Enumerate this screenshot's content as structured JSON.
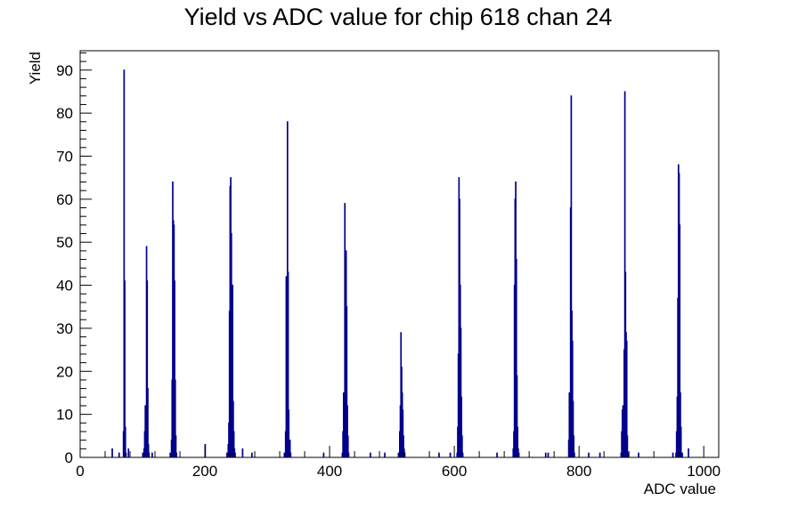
{
  "chart_data": {
    "type": "bar",
    "title": "Yield vs ADC value for chip 618 chan 24",
    "xlabel": "ADC value",
    "ylabel": "Yield",
    "xlim": [
      0,
      1024
    ],
    "ylim": [
      0,
      94.5
    ],
    "xticks": [
      0,
      200,
      400,
      600,
      800,
      1000
    ],
    "yticks": [
      0,
      10,
      20,
      30,
      40,
      50,
      60,
      70,
      80,
      90
    ],
    "grid": false,
    "legend": "none",
    "line_color": "#00008b",
    "bin_width": 1,
    "bins": [
      {
        "x": 51,
        "y": 2
      },
      {
        "x": 62,
        "y": 1
      },
      {
        "x": 69,
        "y": 6
      },
      {
        "x": 70,
        "y": 90
      },
      {
        "x": 71,
        "y": 41
      },
      {
        "x": 72,
        "y": 7
      },
      {
        "x": 73,
        "y": 1
      },
      {
        "x": 77,
        "y": 2
      },
      {
        "x": 100,
        "y": 1
      },
      {
        "x": 102,
        "y": 2
      },
      {
        "x": 103,
        "y": 6
      },
      {
        "x": 104,
        "y": 12
      },
      {
        "x": 105,
        "y": 10
      },
      {
        "x": 106,
        "y": 49
      },
      {
        "x": 107,
        "y": 41
      },
      {
        "x": 108,
        "y": 16
      },
      {
        "x": 109,
        "y": 3
      },
      {
        "x": 110,
        "y": 1
      },
      {
        "x": 115,
        "y": 1
      },
      {
        "x": 144,
        "y": 1
      },
      {
        "x": 146,
        "y": 4
      },
      {
        "x": 147,
        "y": 18
      },
      {
        "x": 148,
        "y": 64
      },
      {
        "x": 149,
        "y": 55
      },
      {
        "x": 150,
        "y": 54
      },
      {
        "x": 151,
        "y": 41
      },
      {
        "x": 152,
        "y": 18
      },
      {
        "x": 153,
        "y": 5
      },
      {
        "x": 154,
        "y": 1
      },
      {
        "x": 200,
        "y": 3
      },
      {
        "x": 235,
        "y": 1
      },
      {
        "x": 237,
        "y": 3
      },
      {
        "x": 238,
        "y": 8
      },
      {
        "x": 239,
        "y": 34
      },
      {
        "x": 240,
        "y": 63
      },
      {
        "x": 241,
        "y": 65
      },
      {
        "x": 242,
        "y": 52
      },
      {
        "x": 243,
        "y": 25
      },
      {
        "x": 244,
        "y": 40
      },
      {
        "x": 245,
        "y": 13
      },
      {
        "x": 246,
        "y": 6
      },
      {
        "x": 247,
        "y": 2
      },
      {
        "x": 248,
        "y": 1
      },
      {
        "x": 260,
        "y": 2
      },
      {
        "x": 275,
        "y": 1
      },
      {
        "x": 327,
        "y": 1
      },
      {
        "x": 329,
        "y": 6
      },
      {
        "x": 330,
        "y": 42
      },
      {
        "x": 331,
        "y": 36
      },
      {
        "x": 332,
        "y": 78
      },
      {
        "x": 333,
        "y": 43
      },
      {
        "x": 334,
        "y": 11
      },
      {
        "x": 335,
        "y": 2
      },
      {
        "x": 336,
        "y": 4
      },
      {
        "x": 337,
        "y": 1
      },
      {
        "x": 390,
        "y": 1
      },
      {
        "x": 420,
        "y": 1
      },
      {
        "x": 421,
        "y": 6
      },
      {
        "x": 422,
        "y": 15
      },
      {
        "x": 423,
        "y": 10
      },
      {
        "x": 424,
        "y": 59
      },
      {
        "x": 425,
        "y": 24
      },
      {
        "x": 426,
        "y": 48
      },
      {
        "x": 427,
        "y": 35
      },
      {
        "x": 428,
        "y": 12
      },
      {
        "x": 429,
        "y": 5
      },
      {
        "x": 430,
        "y": 1
      },
      {
        "x": 465,
        "y": 1
      },
      {
        "x": 488,
        "y": 1
      },
      {
        "x": 510,
        "y": 1
      },
      {
        "x": 512,
        "y": 6
      },
      {
        "x": 513,
        "y": 12
      },
      {
        "x": 514,
        "y": 29
      },
      {
        "x": 515,
        "y": 21
      },
      {
        "x": 516,
        "y": 15
      },
      {
        "x": 517,
        "y": 11
      },
      {
        "x": 518,
        "y": 5
      },
      {
        "x": 519,
        "y": 2
      },
      {
        "x": 520,
        "y": 1
      },
      {
        "x": 575,
        "y": 1
      },
      {
        "x": 593,
        "y": 1
      },
      {
        "x": 604,
        "y": 1
      },
      {
        "x": 605,
        "y": 7
      },
      {
        "x": 606,
        "y": 24
      },
      {
        "x": 607,
        "y": 65
      },
      {
        "x": 608,
        "y": 60
      },
      {
        "x": 609,
        "y": 40
      },
      {
        "x": 610,
        "y": 30
      },
      {
        "x": 611,
        "y": 14
      },
      {
        "x": 612,
        "y": 5
      },
      {
        "x": 613,
        "y": 1
      },
      {
        "x": 668,
        "y": 1
      },
      {
        "x": 694,
        "y": 2
      },
      {
        "x": 695,
        "y": 6
      },
      {
        "x": 696,
        "y": 40
      },
      {
        "x": 697,
        "y": 60
      },
      {
        "x": 698,
        "y": 64
      },
      {
        "x": 699,
        "y": 46
      },
      {
        "x": 700,
        "y": 19
      },
      {
        "x": 701,
        "y": 7
      },
      {
        "x": 702,
        "y": 2
      },
      {
        "x": 703,
        "y": 1
      },
      {
        "x": 746,
        "y": 1
      },
      {
        "x": 750,
        "y": 1
      },
      {
        "x": 783,
        "y": 4
      },
      {
        "x": 784,
        "y": 15
      },
      {
        "x": 785,
        "y": 11
      },
      {
        "x": 786,
        "y": 58
      },
      {
        "x": 787,
        "y": 84
      },
      {
        "x": 788,
        "y": 34
      },
      {
        "x": 789,
        "y": 27
      },
      {
        "x": 790,
        "y": 13
      },
      {
        "x": 791,
        "y": 5
      },
      {
        "x": 792,
        "y": 1
      },
      {
        "x": 815,
        "y": 1
      },
      {
        "x": 833,
        "y": 1
      },
      {
        "x": 867,
        "y": 1
      },
      {
        "x": 868,
        "y": 6
      },
      {
        "x": 869,
        "y": 11
      },
      {
        "x": 870,
        "y": 12
      },
      {
        "x": 871,
        "y": 6
      },
      {
        "x": 872,
        "y": 25
      },
      {
        "x": 873,
        "y": 85
      },
      {
        "x": 874,
        "y": 43
      },
      {
        "x": 875,
        "y": 29
      },
      {
        "x": 876,
        "y": 27
      },
      {
        "x": 877,
        "y": 5
      },
      {
        "x": 878,
        "y": 1
      },
      {
        "x": 895,
        "y": 1
      },
      {
        "x": 950,
        "y": 1
      },
      {
        "x": 955,
        "y": 1
      },
      {
        "x": 956,
        "y": 6
      },
      {
        "x": 957,
        "y": 14
      },
      {
        "x": 958,
        "y": 37
      },
      {
        "x": 959,
        "y": 68
      },
      {
        "x": 960,
        "y": 66
      },
      {
        "x": 961,
        "y": 54
      },
      {
        "x": 962,
        "y": 15
      },
      {
        "x": 963,
        "y": 7
      },
      {
        "x": 964,
        "y": 1
      },
      {
        "x": 965,
        "y": 1
      },
      {
        "x": 975,
        "y": 2
      }
    ]
  }
}
